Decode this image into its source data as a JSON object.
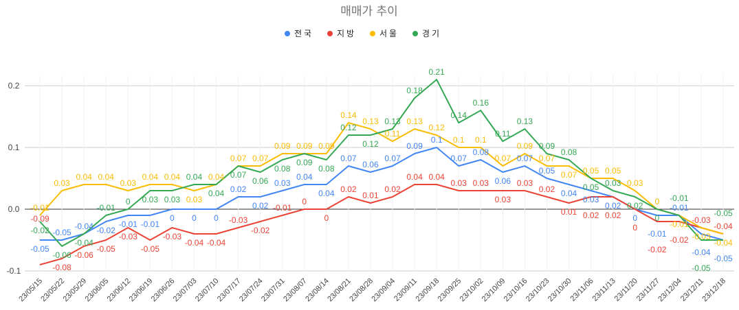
{
  "chart_data": {
    "type": "line",
    "title": "매매가 추이",
    "legend_position": "top",
    "grid": true,
    "ylim": [
      -0.1,
      0.2
    ],
    "yticks": [
      "0.2",
      "0.1",
      "0.0",
      "-0.1"
    ],
    "ytick_values": [
      0.2,
      0.1,
      0.0,
      -0.1
    ],
    "categories": [
      "23/05/15",
      "23/05/22",
      "23/05/29",
      "23/06/05",
      "23/06/12",
      "23/06/19",
      "23/06/26",
      "23/07/03",
      "23/07/10",
      "23/07/17",
      "23/07/24",
      "23/07/31",
      "23/08/07",
      "23/08/14",
      "23/08/21",
      "23/08/28",
      "23/09/04",
      "23/09/11",
      "23/09/18",
      "23/09/25",
      "23/10/02",
      "23/10/09",
      "23/10/16",
      "23/10/23",
      "23/10/30",
      "23/11/06",
      "23/11/13",
      "23/11/20",
      "23/11/27",
      "23/12/04",
      "23/12/11",
      "23/12/18"
    ],
    "series": [
      {
        "name": "전국",
        "color": "#4285F4",
        "values": [
          -0.05,
          -0.05,
          -0.04,
          -0.02,
          -0.01,
          -0.01,
          0,
          0,
          0,
          0.02,
          0.02,
          0.03,
          0.04,
          0.04,
          0.07,
          0.06,
          0.07,
          0.09,
          0.1,
          0.07,
          0.08,
          0.06,
          0.07,
          0.05,
          0.04,
          0.03,
          0.02,
          0,
          -0.01,
          -0.01,
          -0.04,
          -0.05
        ]
      },
      {
        "name": "지방",
        "color": "#EA4335",
        "values": [
          -0.09,
          -0.08,
          -0.06,
          -0.05,
          -0.03,
          -0.05,
          -0.03,
          -0.04,
          -0.04,
          -0.03,
          -0.02,
          -0.01,
          0,
          0,
          0.02,
          0.01,
          0.02,
          0.04,
          0.04,
          0.03,
          0.03,
          0.03,
          0.03,
          0.02,
          0.01,
          0.02,
          0.02,
          0,
          -0.02,
          -0.02,
          -0.03,
          -0.04
        ]
      },
      {
        "name": "서울",
        "color": "#FBBC04",
        "values": [
          -0.01,
          0.03,
          0.04,
          0.04,
          0.03,
          0.04,
          0.04,
          0.03,
          0.04,
          0.07,
          0.07,
          0.09,
          0.09,
          0.09,
          0.14,
          0.13,
          0.11,
          0.13,
          0.12,
          0.1,
          0.1,
          0.07,
          0.09,
          0.07,
          0.07,
          0.05,
          0.05,
          0.03,
          0,
          -0.01,
          -0.03,
          -0.04
        ]
      },
      {
        "name": "경기",
        "color": "#34A853",
        "values": [
          -0.02,
          -0.06,
          -0.04,
          -0.01,
          0,
          0.03,
          0.03,
          0.04,
          0.04,
          0.07,
          0.06,
          0.08,
          0.09,
          0.08,
          0.12,
          0.12,
          0.13,
          0.18,
          0.21,
          0.14,
          0.16,
          0.11,
          0.13,
          0.09,
          0.08,
          0.05,
          0.03,
          0.02,
          0,
          -0.01,
          -0.05,
          -0.05
        ]
      }
    ]
  }
}
